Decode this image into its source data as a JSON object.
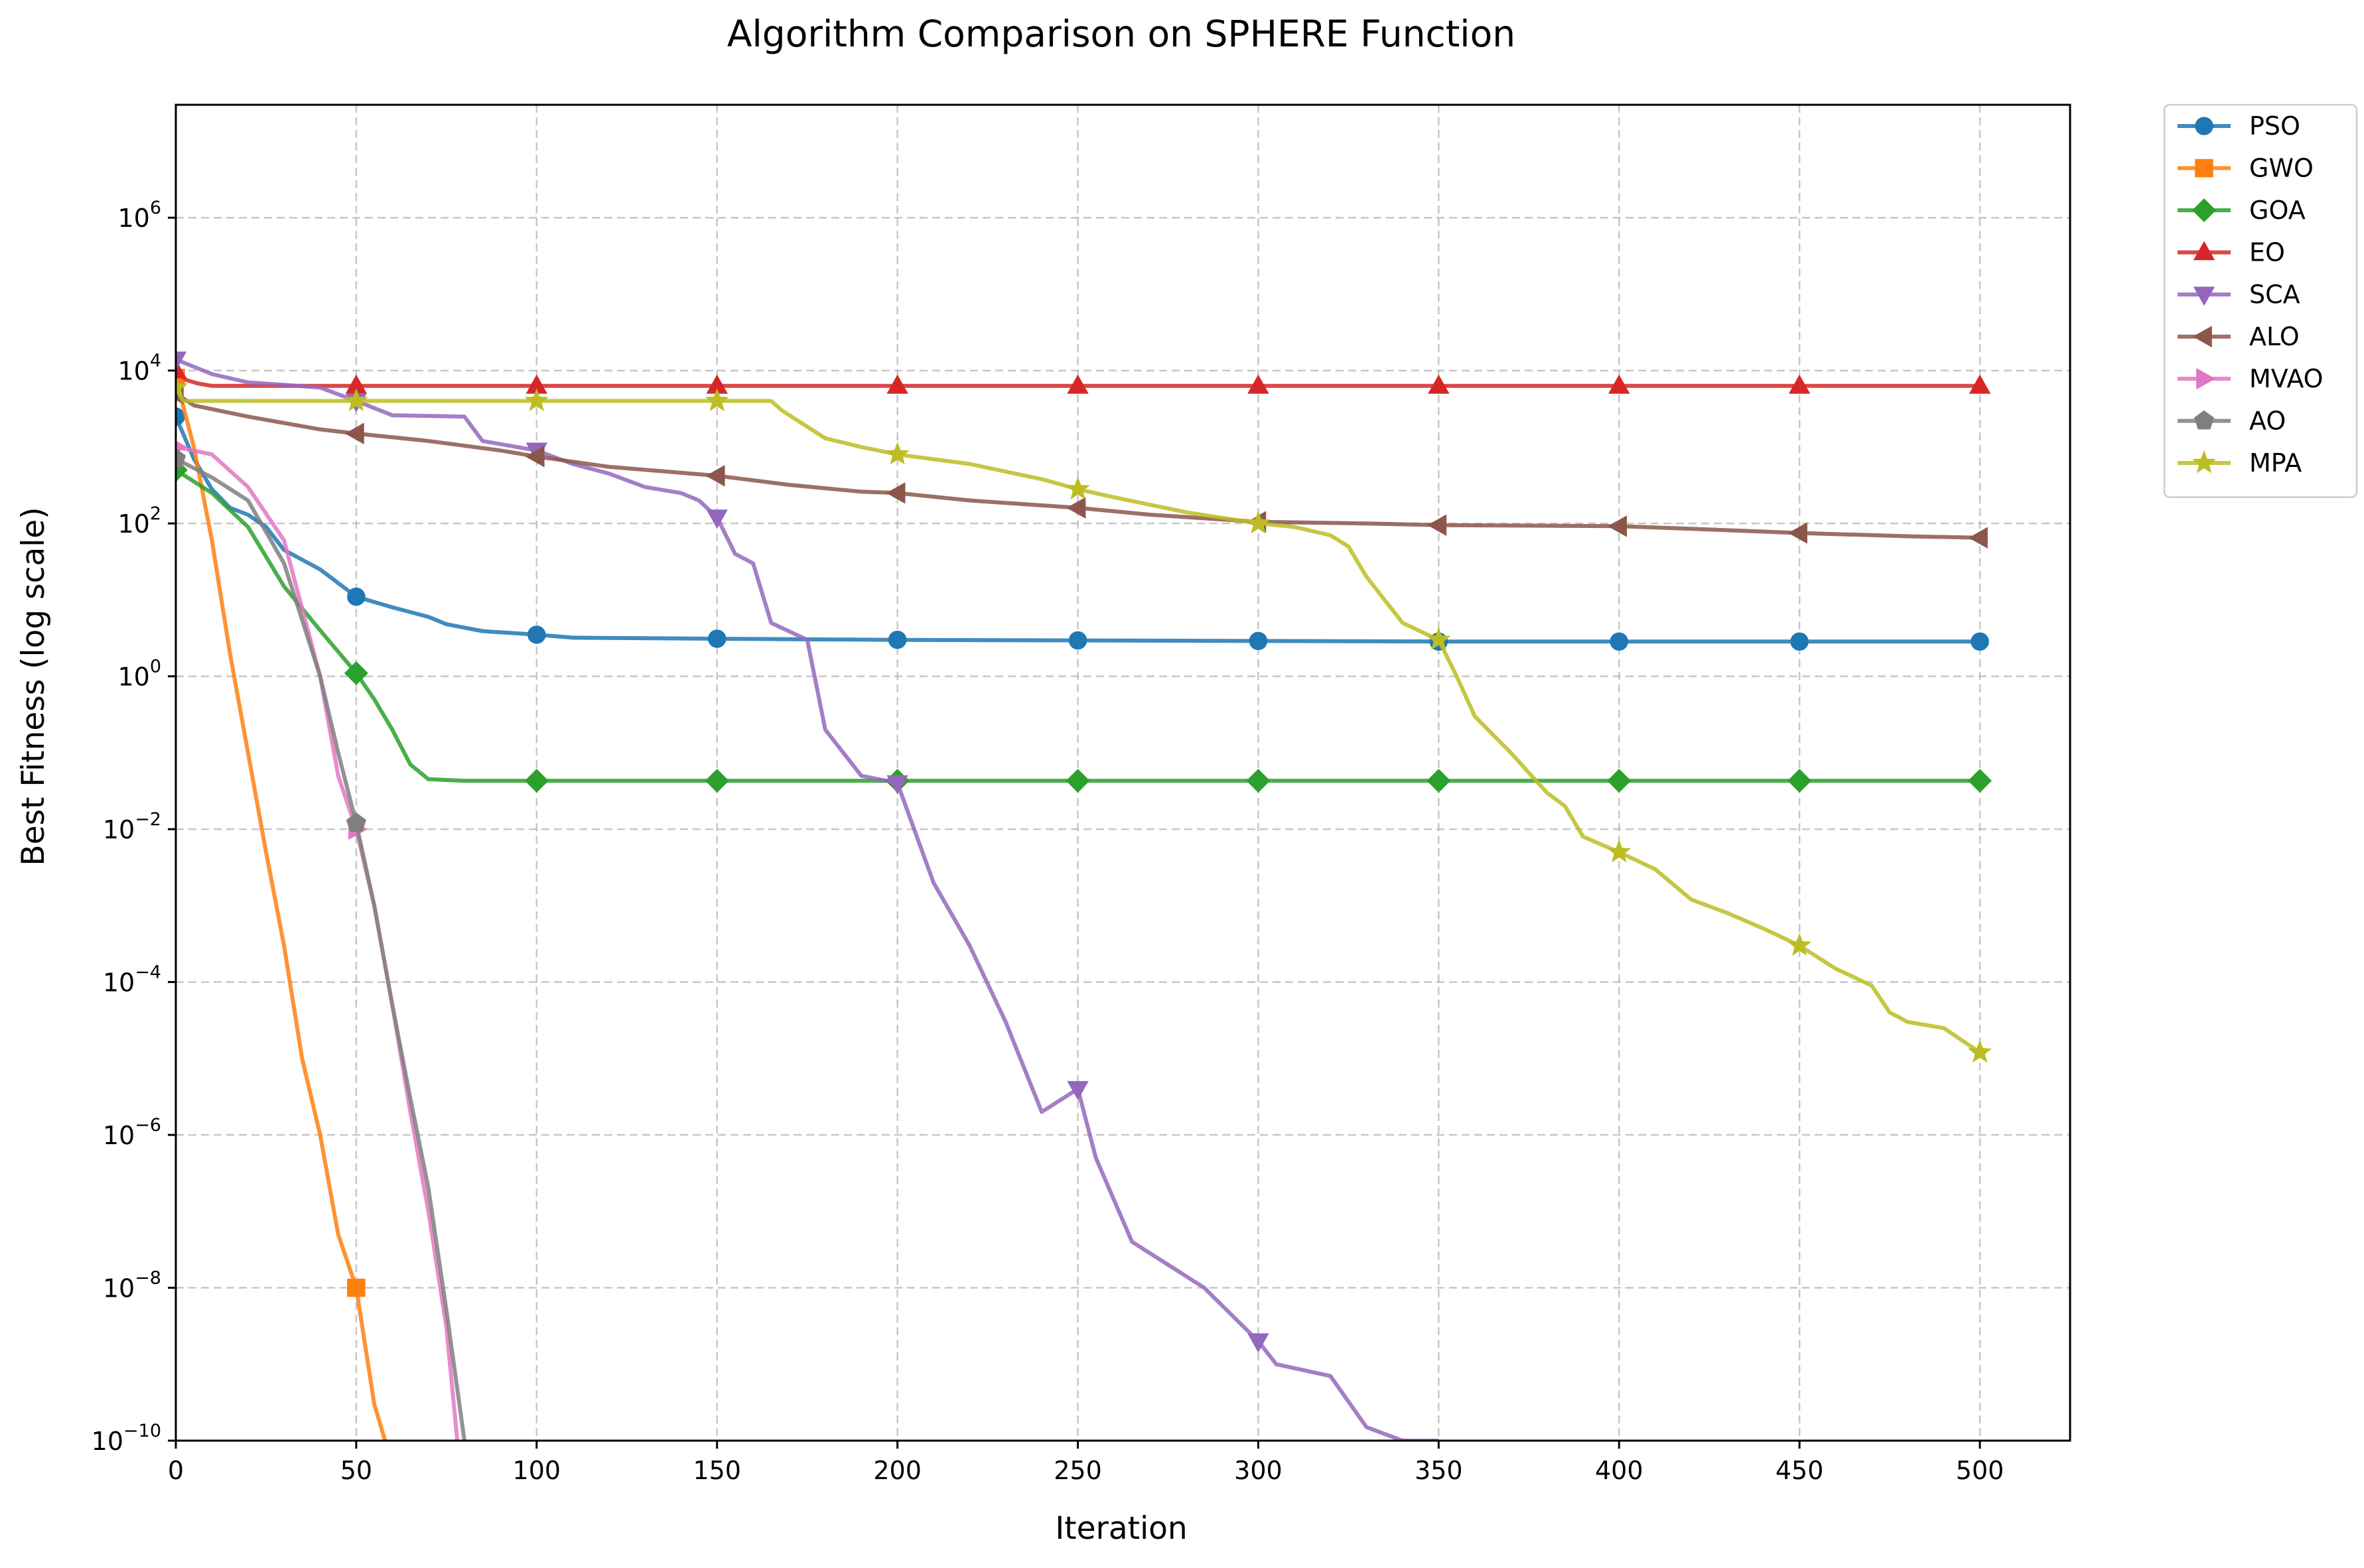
{
  "chart_data": {
    "type": "line",
    "title": "Algorithm Comparison on SPHERE Function",
    "xlabel": "Iteration",
    "ylabel": "Best Fitness (log scale)",
    "xlim": [
      0,
      525
    ],
    "ylim": [
      1e-10,
      30000000.0
    ],
    "yscale": "log",
    "grid": true,
    "legend_position": "outside-top-right",
    "x_ticks": [
      0,
      50,
      100,
      150,
      200,
      250,
      300,
      350,
      400,
      450,
      500
    ],
    "y_ticks": [
      {
        "exp": -10,
        "base": "10",
        "sup": "−10"
      },
      {
        "exp": -8,
        "base": "10",
        "sup": "−8"
      },
      {
        "exp": -6,
        "base": "10",
        "sup": "−6"
      },
      {
        "exp": -4,
        "base": "10",
        "sup": "−4"
      },
      {
        "exp": -2,
        "base": "10",
        "sup": "−2"
      },
      {
        "exp": 0,
        "base": "10",
        "sup": "0"
      },
      {
        "exp": 2,
        "base": "10",
        "sup": "2"
      },
      {
        "exp": 4,
        "base": "10",
        "sup": "4"
      },
      {
        "exp": 6,
        "base": "10",
        "sup": "6"
      }
    ],
    "series": [
      {
        "name": "PSO",
        "color": "#1f77b4",
        "marker": "circle",
        "points": [
          [
            0,
            2500
          ],
          [
            5,
            700
          ],
          [
            10,
            280
          ],
          [
            15,
            160
          ],
          [
            20,
            130
          ],
          [
            25,
            90
          ],
          [
            30,
            45
          ],
          [
            40,
            25
          ],
          [
            50,
            11
          ],
          [
            60,
            8
          ],
          [
            70,
            6
          ],
          [
            75,
            4.8
          ],
          [
            85,
            3.9
          ],
          [
            100,
            3.5
          ],
          [
            110,
            3.2
          ],
          [
            150,
            3.1
          ],
          [
            200,
            3.0
          ],
          [
            250,
            2.95
          ],
          [
            300,
            2.9
          ],
          [
            350,
            2.85
          ],
          [
            400,
            2.85
          ],
          [
            450,
            2.85
          ],
          [
            500,
            2.85
          ]
        ]
      },
      {
        "name": "GWO",
        "color": "#ff7f0e",
        "marker": "square",
        "points": [
          [
            0,
            8000
          ],
          [
            5,
            1000
          ],
          [
            10,
            60
          ],
          [
            15,
            2
          ],
          [
            20,
            0.1
          ],
          [
            25,
            0.005
          ],
          [
            30,
            0.0003
          ],
          [
            35,
            1e-05
          ],
          [
            40,
            1e-06
          ],
          [
            45,
            5e-08
          ],
          [
            50,
            1e-08
          ],
          [
            55,
            3e-10
          ],
          [
            58,
            1e-10
          ]
        ]
      },
      {
        "name": "GOA",
        "color": "#2ca02c",
        "marker": "diamond",
        "points": [
          [
            0,
            500
          ],
          [
            10,
            250
          ],
          [
            20,
            90
          ],
          [
            30,
            15
          ],
          [
            40,
            4
          ],
          [
            50,
            1.1
          ],
          [
            55,
            0.5
          ],
          [
            60,
            0.2
          ],
          [
            65,
            0.07
          ],
          [
            70,
            0.045
          ],
          [
            80,
            0.043
          ],
          [
            100,
            0.043
          ],
          [
            150,
            0.043
          ],
          [
            200,
            0.043
          ],
          [
            250,
            0.043
          ],
          [
            300,
            0.043
          ],
          [
            350,
            0.043
          ],
          [
            400,
            0.043
          ],
          [
            450,
            0.043
          ],
          [
            500,
            0.043
          ]
        ]
      },
      {
        "name": "EO",
        "color": "#d62728",
        "marker": "triangle-up",
        "points": [
          [
            0,
            10000
          ],
          [
            3,
            7500
          ],
          [
            6,
            6800
          ],
          [
            10,
            6300
          ],
          [
            50,
            6300
          ],
          [
            100,
            6300
          ],
          [
            150,
            6300
          ],
          [
            200,
            6300
          ],
          [
            250,
            6300
          ],
          [
            300,
            6300
          ],
          [
            350,
            6300
          ],
          [
            400,
            6300
          ],
          [
            450,
            6300
          ],
          [
            500,
            6300
          ]
        ]
      },
      {
        "name": "SCA",
        "color": "#9467bd",
        "marker": "triangle-down",
        "points": [
          [
            0,
            14000
          ],
          [
            10,
            9000
          ],
          [
            20,
            7000
          ],
          [
            30,
            6500
          ],
          [
            40,
            6000
          ],
          [
            50,
            4000
          ],
          [
            60,
            2600
          ],
          [
            80,
            2500
          ],
          [
            85,
            1200
          ],
          [
            100,
            900
          ],
          [
            110,
            600
          ],
          [
            120,
            450
          ],
          [
            130,
            300
          ],
          [
            140,
            250
          ],
          [
            145,
            200
          ],
          [
            150,
            120
          ],
          [
            155,
            40
          ],
          [
            160,
            30
          ],
          [
            165,
            5
          ],
          [
            175,
            3
          ],
          [
            180,
            0.2
          ],
          [
            190,
            0.05
          ],
          [
            200,
            0.04
          ],
          [
            210,
            0.002
          ],
          [
            220,
            0.0003
          ],
          [
            230,
            3e-05
          ],
          [
            240,
            2e-06
          ],
          [
            250,
            4e-06
          ],
          [
            255,
            5e-07
          ],
          [
            265,
            4e-08
          ],
          [
            275,
            2e-08
          ],
          [
            285,
            1e-08
          ],
          [
            300,
            2e-09
          ],
          [
            305,
            1e-09
          ],
          [
            320,
            7e-10
          ],
          [
            330,
            1.5e-10
          ],
          [
            340,
            1e-10
          ],
          [
            350,
            1e-10
          ]
        ]
      },
      {
        "name": "ALO",
        "color": "#8c564b",
        "marker": "triangle-left",
        "points": [
          [
            0,
            5000
          ],
          [
            5,
            3500
          ],
          [
            20,
            2500
          ],
          [
            40,
            1700
          ],
          [
            50,
            1500
          ],
          [
            70,
            1200
          ],
          [
            90,
            900
          ],
          [
            100,
            750
          ],
          [
            120,
            550
          ],
          [
            150,
            420
          ],
          [
            170,
            320
          ],
          [
            190,
            260
          ],
          [
            200,
            250
          ],
          [
            220,
            200
          ],
          [
            250,
            160
          ],
          [
            270,
            130
          ],
          [
            300,
            105
          ],
          [
            330,
            100
          ],
          [
            350,
            95
          ],
          [
            400,
            92
          ],
          [
            420,
            85
          ],
          [
            450,
            75
          ],
          [
            480,
            68
          ],
          [
            500,
            65
          ]
        ]
      },
      {
        "name": "MVAO",
        "color": "#e377c2",
        "marker": "triangle-right",
        "points": [
          [
            0,
            1000
          ],
          [
            10,
            800
          ],
          [
            20,
            300
          ],
          [
            30,
            60
          ],
          [
            40,
            1
          ],
          [
            45,
            0.05
          ],
          [
            50,
            0.01
          ],
          [
            55,
            0.001
          ],
          [
            60,
            5e-05
          ],
          [
            65,
            2e-06
          ],
          [
            70,
            1e-07
          ],
          [
            75,
            3e-09
          ],
          [
            78,
            1e-10
          ]
        ]
      },
      {
        "name": "AO",
        "color": "#7f7f7f",
        "marker": "pentagon",
        "points": [
          [
            0,
            700
          ],
          [
            10,
            400
          ],
          [
            20,
            200
          ],
          [
            30,
            30
          ],
          [
            40,
            1
          ],
          [
            45,
            0.1
          ],
          [
            50,
            0.012
          ],
          [
            55,
            0.001
          ],
          [
            60,
            5e-05
          ],
          [
            65,
            3e-06
          ],
          [
            70,
            2e-07
          ],
          [
            75,
            5e-09
          ],
          [
            80,
            1e-10
          ]
        ]
      },
      {
        "name": "MPA",
        "color": "#bcbd22",
        "marker": "star",
        "points": [
          [
            0,
            6000
          ],
          [
            2,
            4000
          ],
          [
            50,
            4000
          ],
          [
            100,
            4000
          ],
          [
            150,
            4000
          ],
          [
            165,
            4000
          ],
          [
            168,
            3000
          ],
          [
            180,
            1300
          ],
          [
            190,
            1000
          ],
          [
            200,
            800
          ],
          [
            220,
            600
          ],
          [
            240,
            380
          ],
          [
            250,
            280
          ],
          [
            260,
            220
          ],
          [
            280,
            140
          ],
          [
            300,
            100
          ],
          [
            310,
            90
          ],
          [
            320,
            70
          ],
          [
            325,
            50
          ],
          [
            330,
            20
          ],
          [
            340,
            5
          ],
          [
            350,
            3
          ],
          [
            355,
            1
          ],
          [
            360,
            0.3
          ],
          [
            370,
            0.1
          ],
          [
            380,
            0.03
          ],
          [
            385,
            0.02
          ],
          [
            390,
            0.008
          ],
          [
            400,
            0.005
          ],
          [
            410,
            0.003
          ],
          [
            420,
            0.0012
          ],
          [
            430,
            0.0008
          ],
          [
            440,
            0.0005
          ],
          [
            450,
            0.0003
          ],
          [
            460,
            0.00015
          ],
          [
            470,
            9e-05
          ],
          [
            475,
            4e-05
          ],
          [
            480,
            3e-05
          ],
          [
            490,
            2.5e-05
          ],
          [
            500,
            1.2e-05
          ]
        ]
      }
    ]
  }
}
